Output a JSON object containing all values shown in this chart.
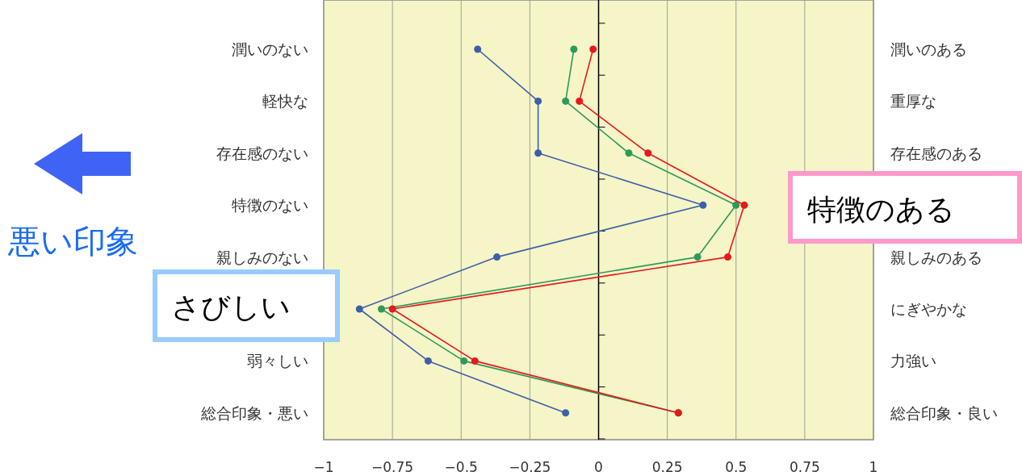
{
  "chart_data": {
    "type": "line",
    "categories": [
      "潤いのない",
      "軽快な",
      "存在感のない",
      "特徴のない",
      "親しみのない",
      null,
      "弱々しい",
      "総合印象・悪い"
    ],
    "y2_categories": [
      "潤いのある",
      "重厚な",
      "存在感のある",
      null,
      "親しみのある",
      "にぎやかな",
      "力強い",
      "総合印象・良い"
    ],
    "series": [
      {
        "color": "#3e5fa8",
        "values": [
          -0.44,
          -0.22,
          -0.22,
          0.38,
          -0.37,
          -0.87,
          -0.62,
          -0.12
        ]
      },
      {
        "color": "#2e9a5a",
        "values": [
          -0.09,
          -0.12,
          0.11,
          0.5,
          0.36,
          -0.79,
          -0.49,
          0.29
        ]
      },
      {
        "color": "#e8191e",
        "values": [
          -0.02,
          -0.07,
          0.18,
          0.53,
          0.47,
          -0.75,
          -0.45,
          0.29
        ]
      }
    ],
    "xlim": [
      -1,
      1
    ],
    "xticks": [
      {
        "value": -1,
        "label": "−1"
      },
      {
        "value": -0.75,
        "label": "−0.75"
      },
      {
        "value": -0.5,
        "label": "−0.5"
      },
      {
        "value": -0.25,
        "label": "−0.25"
      },
      0,
      0.25,
      0.5,
      0.75,
      1
    ],
    "grid": "x",
    "marker": "circle",
    "orientation": "horizontal",
    "ref_lines": [
      {
        "axis": "x",
        "value": 0,
        "color": "#000000"
      }
    ],
    "annotations": [
      "悪い印象",
      "さびしい",
      "特徴のある"
    ]
  }
}
